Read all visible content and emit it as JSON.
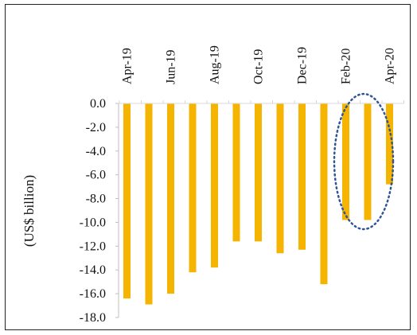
{
  "chart_data": {
    "type": "bar",
    "title": "",
    "xlabel": "",
    "ylabel": "(US$ billion)",
    "ylim": [
      -18.0,
      0.0
    ],
    "yticks": [
      0.0,
      -2.0,
      -4.0,
      -6.0,
      -8.0,
      -10.0,
      -12.0,
      -14.0,
      -16.0,
      -18.0
    ],
    "ytick_labels": [
      "0.0",
      "-2.0",
      "-4.0",
      "-6.0",
      "-8.0",
      "-10.0",
      "-12.0",
      "-14.0",
      "-16.0",
      "-18.0"
    ],
    "categories": [
      "Apr-19",
      "May-19",
      "Jun-19",
      "Jul-19",
      "Aug-19",
      "Sep-19",
      "Oct-19",
      "Nov-19",
      "Dec-19",
      "Jan-20",
      "Feb-20",
      "Mar-20",
      "Apr-20"
    ],
    "x_tick_labels": [
      "Apr-19",
      "",
      "Jun-19",
      "",
      "Aug-19",
      "",
      "Oct-19",
      "",
      "Dec-19",
      "",
      "Feb-20",
      "",
      "Apr-20"
    ],
    "values": [
      -16.4,
      -16.9,
      -16.0,
      -14.2,
      -13.8,
      -11.6,
      -11.6,
      -12.6,
      -12.3,
      -15.2,
      -9.8,
      -9.8,
      -6.8
    ],
    "bar_color": "#F5B400",
    "grid": false,
    "annotation": {
      "shape": "dotted-ellipse",
      "color": "#2F5597",
      "highlights": [
        "Feb-20",
        "Mar-20",
        "Apr-20"
      ]
    }
  }
}
